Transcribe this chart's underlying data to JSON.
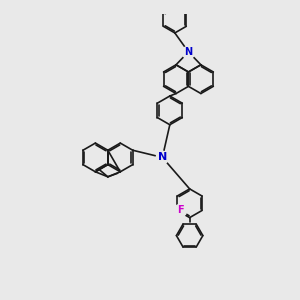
{
  "background_color": "#e9e9e9",
  "bond_color": "#1a1a1a",
  "nitrogen_color": "#0000cc",
  "fluorine_color": "#cc00cc",
  "lw": 1.2,
  "dg": 0.055,
  "figsize": [
    3.0,
    3.0
  ],
  "dpi": 100,
  "xlim": [
    -6.5,
    5.5
  ],
  "ylim": [
    -5.5,
    5.5
  ]
}
